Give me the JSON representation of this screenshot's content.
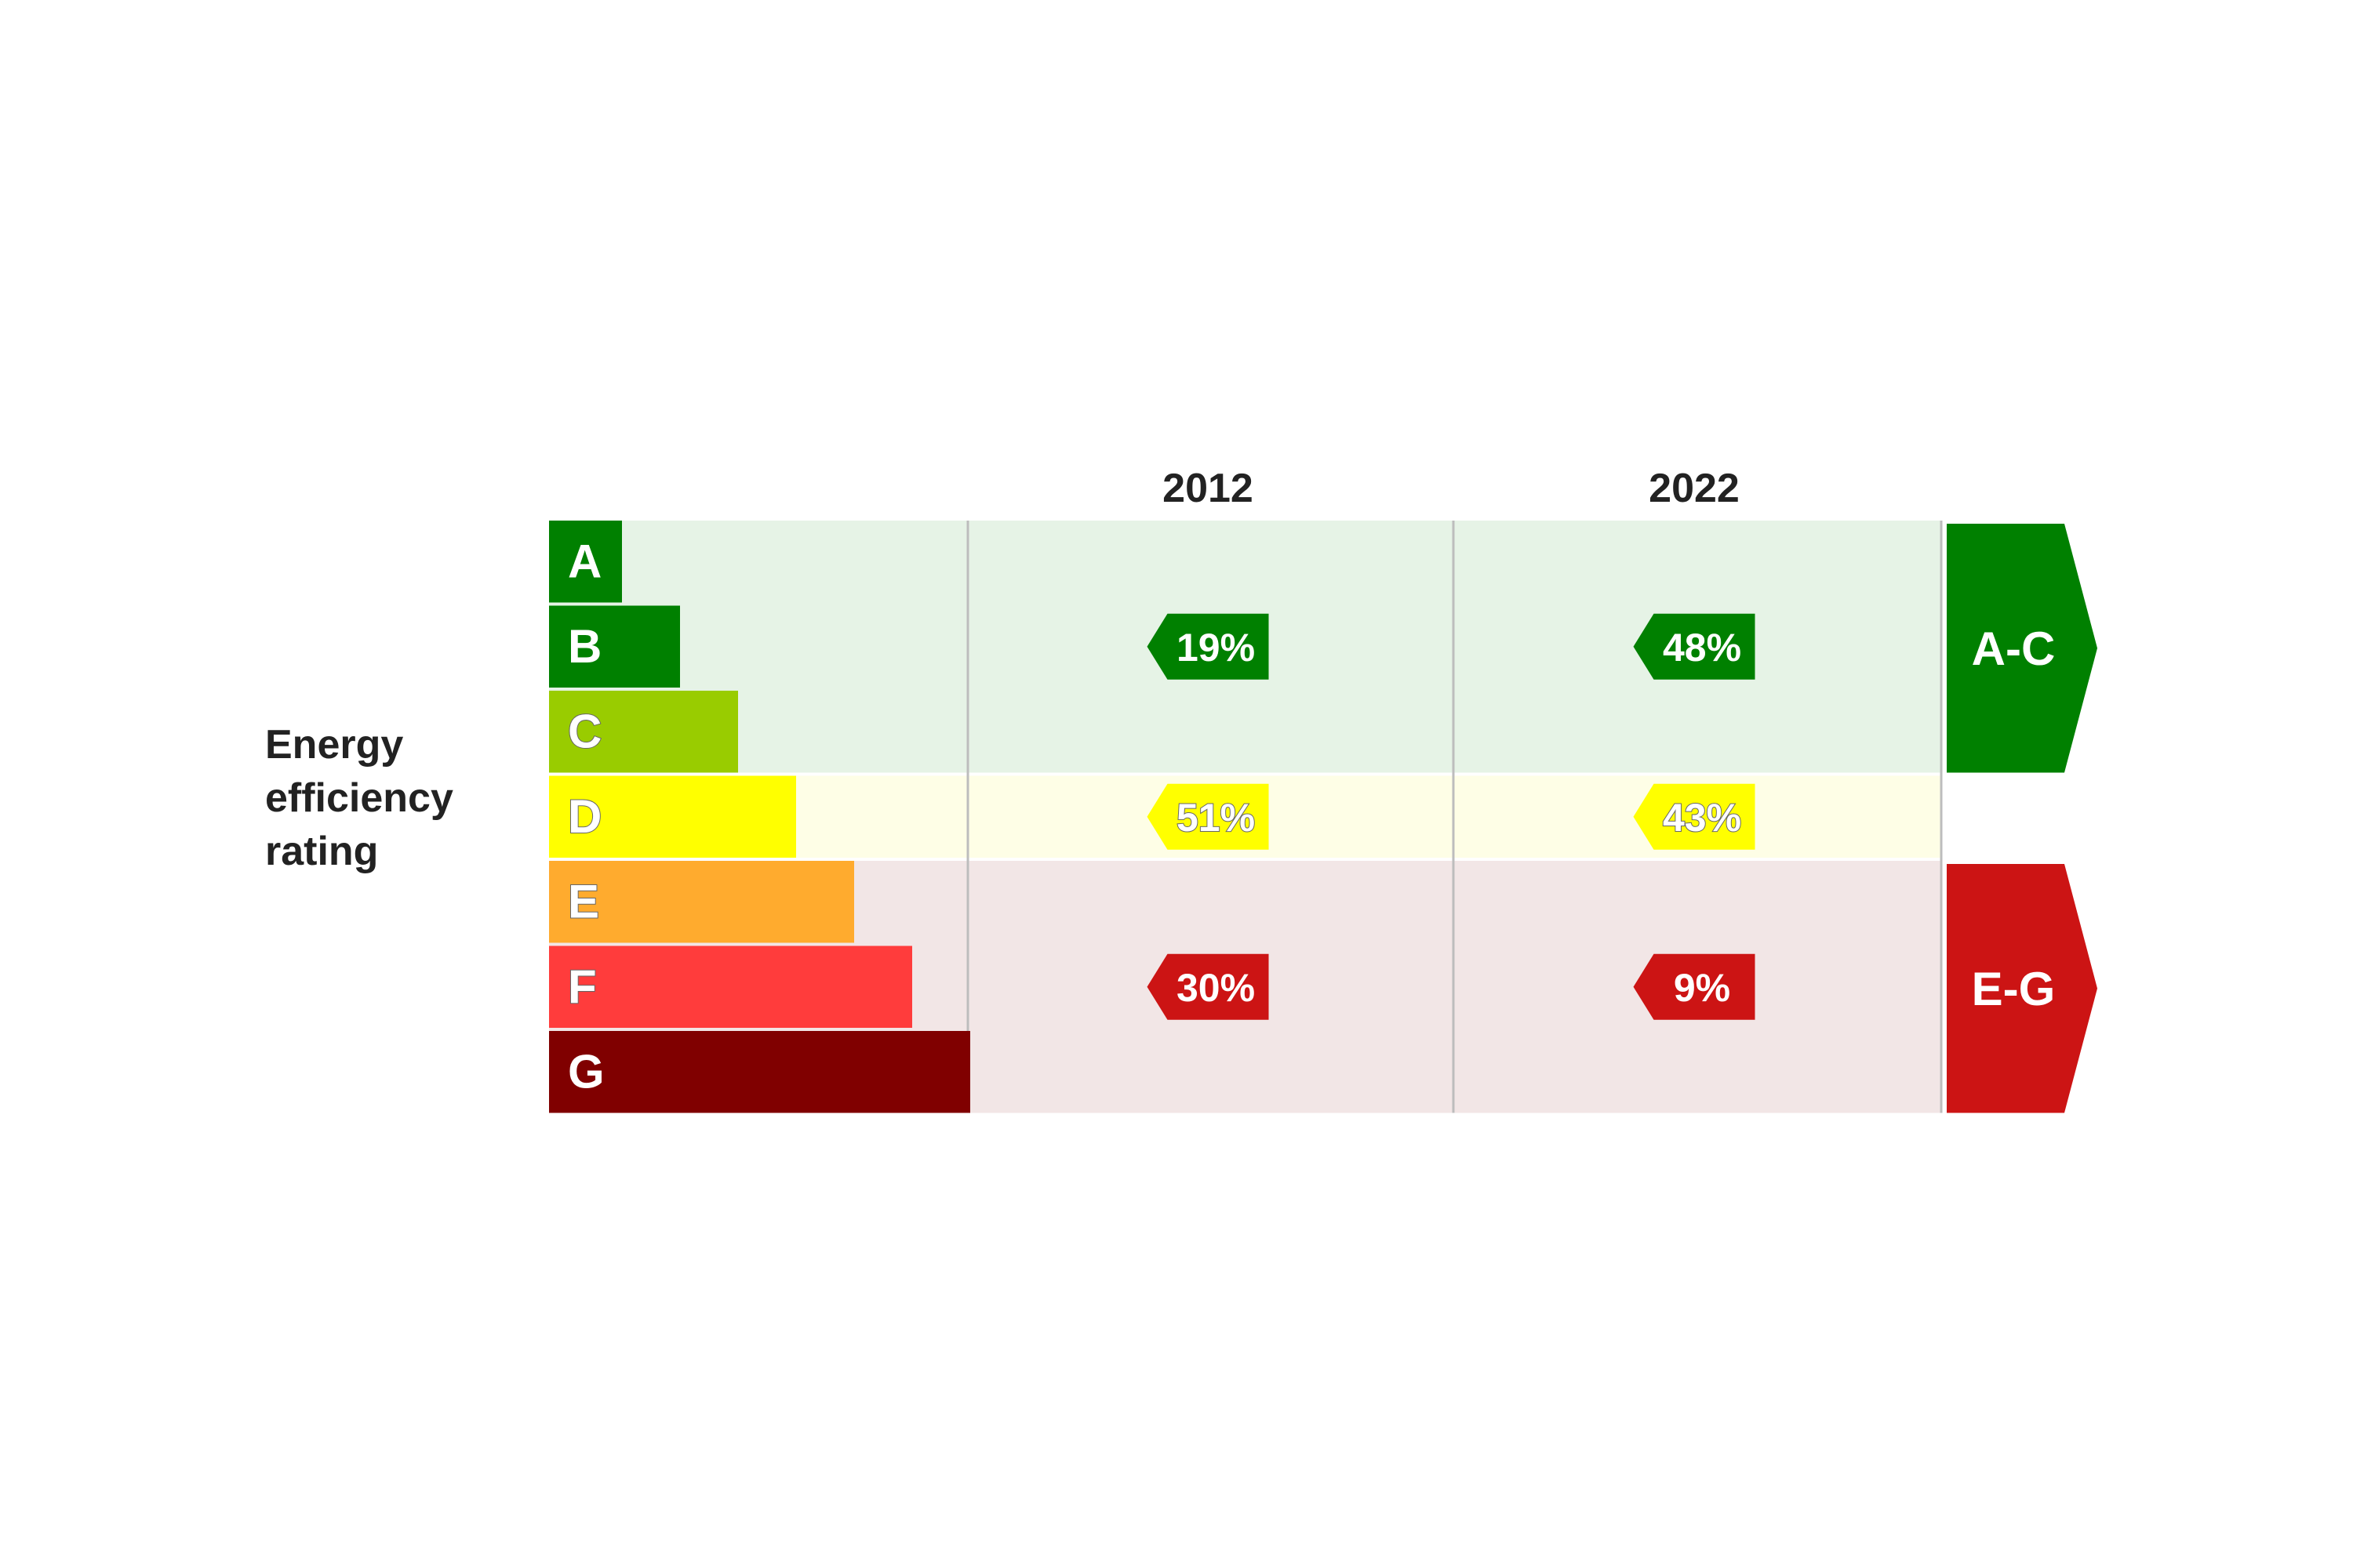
{
  "chart_data": {
    "type": "table",
    "title": "",
    "row_label": "Energy efficiency rating",
    "ratings": [
      {
        "label": "A",
        "color": "#008000",
        "text_color": "#ffffff",
        "outline": false
      },
      {
        "label": "B",
        "color": "#008000",
        "text_color": "#ffffff",
        "outline": false
      },
      {
        "label": "C",
        "color": "#99cc00",
        "text_color": "#ffffff",
        "outline": true
      },
      {
        "label": "D",
        "color": "#ffff00",
        "text_color": "#ffffff",
        "outline": true
      },
      {
        "label": "E",
        "color": "#ffab2e",
        "text_color": "#ffffff",
        "outline": true
      },
      {
        "label": "F",
        "color": "#ff3c3c",
        "text_color": "#ffffff",
        "outline": true
      },
      {
        "label": "G",
        "color": "#800000",
        "text_color": "#ffffff",
        "outline": false
      }
    ],
    "years": [
      "2012",
      "2022"
    ],
    "groups": [
      {
        "label": "A-C",
        "ratings": [
          "A",
          "B",
          "C"
        ],
        "color": "#008000",
        "band_color": "#e6f3e6",
        "values": [
          19,
          48
        ],
        "value_labels": [
          "19%",
          "48%"
        ],
        "outline": false
      },
      {
        "label": "D",
        "ratings": [
          "D"
        ],
        "color": "#ffff00",
        "band_color": "#fefee6",
        "values": [
          51,
          43
        ],
        "value_labels": [
          "51%",
          "43%"
        ],
        "outline": true
      },
      {
        "label": "E-G",
        "ratings": [
          "E",
          "F",
          "G"
        ],
        "color": "#cc1414",
        "band_color": "#f2e6e6",
        "values": [
          30,
          9
        ],
        "value_labels": [
          "30%",
          "9%"
        ],
        "outline": false
      }
    ],
    "side_arrows": [
      {
        "label": "A-C",
        "color": "#008000"
      },
      {
        "label": "E-G",
        "color": "#cc1414"
      }
    ],
    "grid": true
  }
}
